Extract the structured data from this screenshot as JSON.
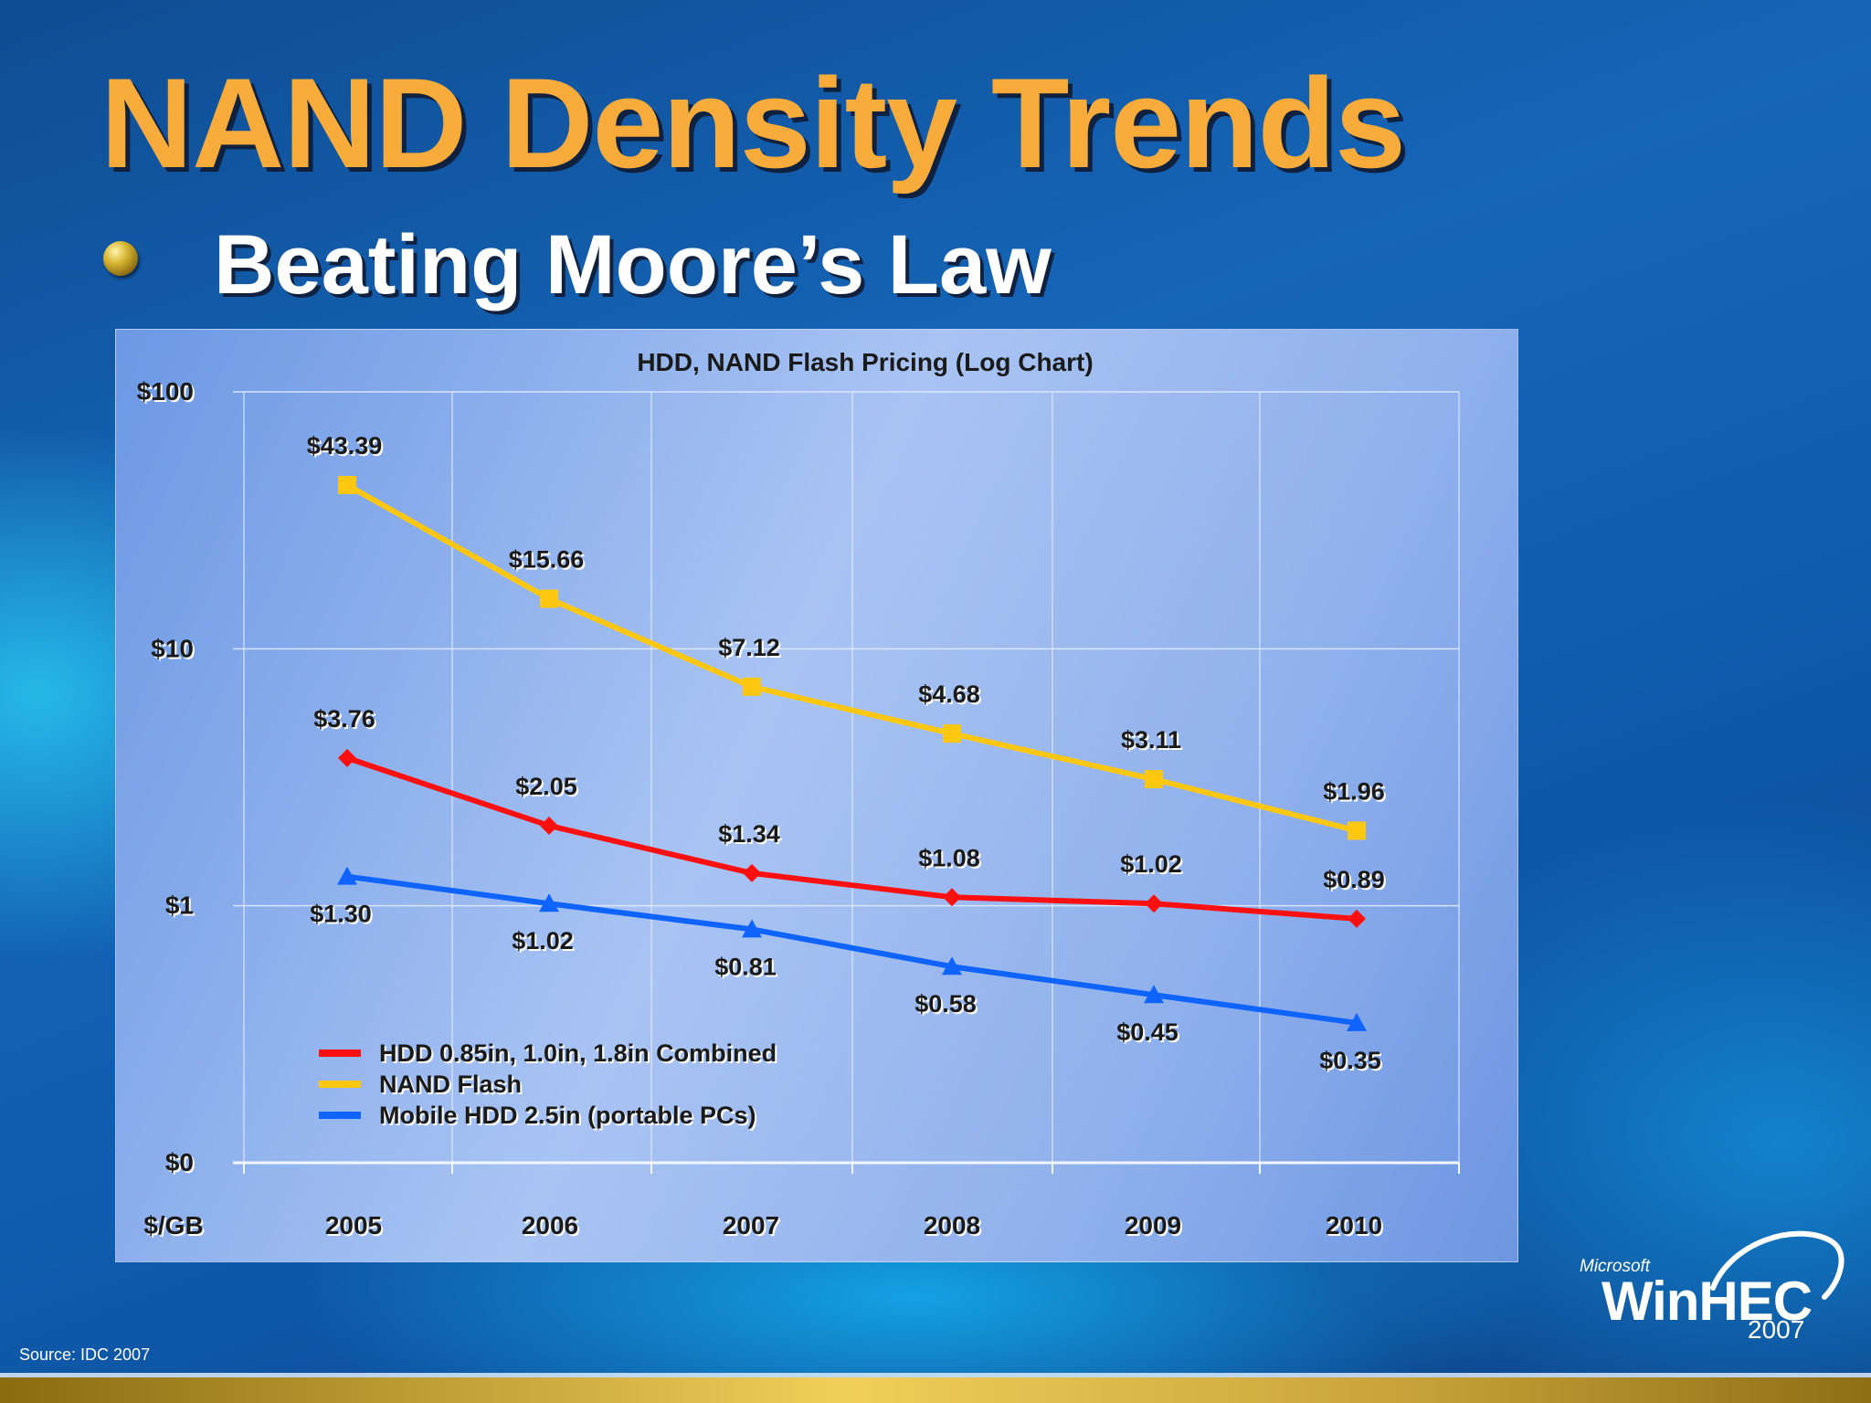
{
  "slide": {
    "title": "NAND Density Trends",
    "bullet": "Beating Moore’s Law",
    "source": "Source: IDC 2007"
  },
  "logo": {
    "company": "Microsoft",
    "name": "WinHEC",
    "year": "2007"
  },
  "colors": {
    "title": "#f6ab3b",
    "hdd_combined": "#ff1010",
    "nand_flash": "#ffc70f",
    "mobile_hdd": "#0f64ff"
  },
  "chart_data": {
    "type": "line",
    "title": "HDD, NAND Flash Pricing (Log Chart)",
    "yscale": "log",
    "ylabel": "$/GB",
    "ylim": [
      0.1,
      100
    ],
    "y_ticks": [
      {
        "value": 100,
        "label": "$100"
      },
      {
        "value": 10,
        "label": "$10"
      },
      {
        "value": 1,
        "label": "$1"
      },
      {
        "value": 0.1,
        "label": "$0"
      }
    ],
    "categories": [
      "2005",
      "2006",
      "2007",
      "2008",
      "2009",
      "2010"
    ],
    "grid": true,
    "legend_position": "bottom-left",
    "series": [
      {
        "name": "HDD 0.85in, 1.0in, 1.8in Combined",
        "color": "#ff1010",
        "marker": "diamond",
        "values": [
          3.76,
          2.05,
          1.34,
          1.08,
          1.02,
          0.89
        ],
        "labels": [
          "$3.76",
          "$2.05",
          "$1.34",
          "$1.08",
          "$1.02",
          "$0.89"
        ],
        "label_position": "above"
      },
      {
        "name": "NAND Flash",
        "color": "#ffc70f",
        "marker": "square",
        "values": [
          43.39,
          15.66,
          7.12,
          4.68,
          3.11,
          1.96
        ],
        "labels": [
          "$43.39",
          "$15.66",
          "$7.12",
          "$4.68",
          "$3.11",
          "$1.96"
        ],
        "label_position": "above"
      },
      {
        "name": "Mobile HDD 2.5in (portable PCs)",
        "color": "#0f64ff",
        "marker": "triangle",
        "values": [
          1.3,
          1.02,
          0.81,
          0.58,
          0.45,
          0.35
        ],
        "labels": [
          "$1.30",
          "$1.02",
          "$0.81",
          "$0.58",
          "$0.45",
          "$0.35"
        ],
        "label_position": "below"
      }
    ]
  }
}
